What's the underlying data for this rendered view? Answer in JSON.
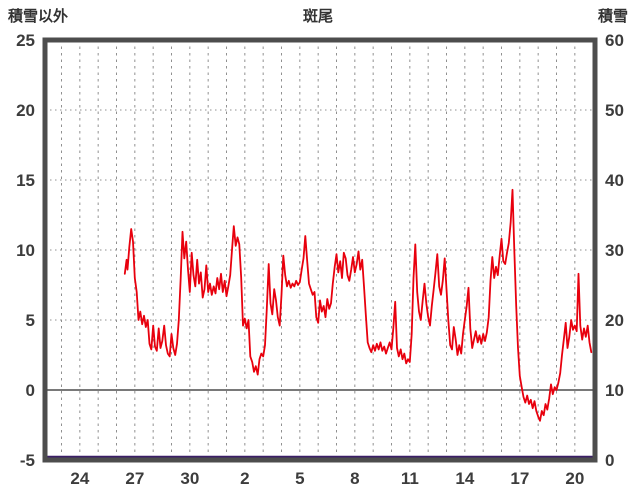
{
  "header": {
    "left_axis_title": "積雪以外",
    "title": "斑尾",
    "right_axis_title": "積雪"
  },
  "colors": {
    "frame": "#4d4d4d",
    "grid": "#909090",
    "zero_line": "#4d4d4d",
    "text": "#3c3c3c",
    "temperature_line": "#e8000d",
    "snow_line": "#3a1f66"
  },
  "chart_data": {
    "type": "line",
    "title": "斑尾",
    "left_axis": {
      "label": "積雪以外",
      "min": -5,
      "max": 25,
      "ticks": [
        25,
        20,
        15,
        10,
        5,
        0,
        -5
      ]
    },
    "right_axis": {
      "label": "積雪",
      "min": 0,
      "max": 60,
      "ticks": [
        60,
        50,
        40,
        30,
        20,
        10,
        0
      ]
    },
    "x_axis": {
      "tick_labels": [
        "24",
        "27",
        "30",
        "2",
        "5",
        "8",
        "11",
        "14",
        "17",
        "20"
      ],
      "tick_positions": [
        0,
        3,
        6,
        9,
        12,
        15,
        18,
        21,
        24,
        27
      ],
      "min": -1.9,
      "max": 28.1,
      "day_grid_step": 1
    },
    "grid": true,
    "legend_position": "none",
    "zero_line_value": 0,
    "series": [
      {
        "name": "積雪以外",
        "axis": "left",
        "color": "#e8000d",
        "width": 1.8,
        "points": [
          [
            2.45,
            8.3
          ],
          [
            2.55,
            9.3
          ],
          [
            2.6,
            8.6
          ],
          [
            2.7,
            10.2
          ],
          [
            2.8,
            11.5
          ],
          [
            2.9,
            10.6
          ],
          [
            3.0,
            8.0
          ],
          [
            3.1,
            7.0
          ],
          [
            3.2,
            5.0
          ],
          [
            3.3,
            5.6
          ],
          [
            3.4,
            4.7
          ],
          [
            3.5,
            5.3
          ],
          [
            3.6,
            4.5
          ],
          [
            3.7,
            5.0
          ],
          [
            3.8,
            3.3
          ],
          [
            3.9,
            2.9
          ],
          [
            4.0,
            4.6
          ],
          [
            4.1,
            3.1
          ],
          [
            4.2,
            2.8
          ],
          [
            4.3,
            4.4
          ],
          [
            4.4,
            3.0
          ],
          [
            4.5,
            3.5
          ],
          [
            4.6,
            4.6
          ],
          [
            4.7,
            3.2
          ],
          [
            4.8,
            2.6
          ],
          [
            4.9,
            2.4
          ],
          [
            5.0,
            4.0
          ],
          [
            5.1,
            3.0
          ],
          [
            5.2,
            2.5
          ],
          [
            5.3,
            3.3
          ],
          [
            5.4,
            5.0
          ],
          [
            5.5,
            8.0
          ],
          [
            5.6,
            11.3
          ],
          [
            5.7,
            9.4
          ],
          [
            5.8,
            10.6
          ],
          [
            5.9,
            8.6
          ],
          [
            6.0,
            7.0
          ],
          [
            6.1,
            9.8
          ],
          [
            6.2,
            8.2
          ],
          [
            6.3,
            7.4
          ],
          [
            6.4,
            9.3
          ],
          [
            6.5,
            7.6
          ],
          [
            6.6,
            8.4
          ],
          [
            6.7,
            6.6
          ],
          [
            6.8,
            7.2
          ],
          [
            6.9,
            8.9
          ],
          [
            7.0,
            7.0
          ],
          [
            7.1,
            7.6
          ],
          [
            7.2,
            6.8
          ],
          [
            7.3,
            7.4
          ],
          [
            7.4,
            6.9
          ],
          [
            7.5,
            8.0
          ],
          [
            7.6,
            7.2
          ],
          [
            7.7,
            8.3
          ],
          [
            7.8,
            7.0
          ],
          [
            7.9,
            7.8
          ],
          [
            8.0,
            6.7
          ],
          [
            8.1,
            7.4
          ],
          [
            8.2,
            8.2
          ],
          [
            8.3,
            10.0
          ],
          [
            8.4,
            11.7
          ],
          [
            8.5,
            10.3
          ],
          [
            8.6,
            10.9
          ],
          [
            8.7,
            10.4
          ],
          [
            8.8,
            8.0
          ],
          [
            8.9,
            4.6
          ],
          [
            9.0,
            5.1
          ],
          [
            9.1,
            4.4
          ],
          [
            9.2,
            5.0
          ],
          [
            9.3,
            2.4
          ],
          [
            9.4,
            2.0
          ],
          [
            9.5,
            1.3
          ],
          [
            9.6,
            1.7
          ],
          [
            9.7,
            1.1
          ],
          [
            9.8,
            2.2
          ],
          [
            9.9,
            2.6
          ],
          [
            10.0,
            2.4
          ],
          [
            10.1,
            3.2
          ],
          [
            10.2,
            5.8
          ],
          [
            10.3,
            9.0
          ],
          [
            10.4,
            6.2
          ],
          [
            10.5,
            5.4
          ],
          [
            10.6,
            7.2
          ],
          [
            10.7,
            6.4
          ],
          [
            10.8,
            5.2
          ],
          [
            10.9,
            4.6
          ],
          [
            11.0,
            6.8
          ],
          [
            11.1,
            9.6
          ],
          [
            11.2,
            8.2
          ],
          [
            11.3,
            7.4
          ],
          [
            11.4,
            7.8
          ],
          [
            11.5,
            7.3
          ],
          [
            11.6,
            7.6
          ],
          [
            11.7,
            7.4
          ],
          [
            11.8,
            7.8
          ],
          [
            11.9,
            7.5
          ],
          [
            12.0,
            7.7
          ],
          [
            12.1,
            8.6
          ],
          [
            12.2,
            9.4
          ],
          [
            12.3,
            11.0
          ],
          [
            12.4,
            9.2
          ],
          [
            12.5,
            7.6
          ],
          [
            12.6,
            7.2
          ],
          [
            12.7,
            6.8
          ],
          [
            12.8,
            7.0
          ],
          [
            12.9,
            5.2
          ],
          [
            13.0,
            4.8
          ],
          [
            13.1,
            6.4
          ],
          [
            13.2,
            5.6
          ],
          [
            13.3,
            6.0
          ],
          [
            13.4,
            5.2
          ],
          [
            13.5,
            6.5
          ],
          [
            13.6,
            5.8
          ],
          [
            13.7,
            6.2
          ],
          [
            13.8,
            7.6
          ],
          [
            13.9,
            8.8
          ],
          [
            14.0,
            9.7
          ],
          [
            14.1,
            8.4
          ],
          [
            14.2,
            9.2
          ],
          [
            14.3,
            8.0
          ],
          [
            14.4,
            9.8
          ],
          [
            14.5,
            9.4
          ],
          [
            14.6,
            8.2
          ],
          [
            14.7,
            7.8
          ],
          [
            14.8,
            8.6
          ],
          [
            14.9,
            9.5
          ],
          [
            15.0,
            8.4
          ],
          [
            15.1,
            9.0
          ],
          [
            15.2,
            9.9
          ],
          [
            15.3,
            8.6
          ],
          [
            15.4,
            9.3
          ],
          [
            15.5,
            7.4
          ],
          [
            15.6,
            5.4
          ],
          [
            15.7,
            3.4
          ],
          [
            15.8,
            3.0
          ],
          [
            15.9,
            2.7
          ],
          [
            16.0,
            3.2
          ],
          [
            16.1,
            2.8
          ],
          [
            16.2,
            3.3
          ],
          [
            16.3,
            2.9
          ],
          [
            16.4,
            3.4
          ],
          [
            16.5,
            2.8
          ],
          [
            16.6,
            3.1
          ],
          [
            16.7,
            2.6
          ],
          [
            16.8,
            3.0
          ],
          [
            16.9,
            3.4
          ],
          [
            17.0,
            2.9
          ],
          [
            17.1,
            4.4
          ],
          [
            17.2,
            6.3
          ],
          [
            17.3,
            3.0
          ],
          [
            17.4,
            2.4
          ],
          [
            17.5,
            2.9
          ],
          [
            17.6,
            2.2
          ],
          [
            17.7,
            2.6
          ],
          [
            17.8,
            1.9
          ],
          [
            17.9,
            2.2
          ],
          [
            18.0,
            2.0
          ],
          [
            18.1,
            4.0
          ],
          [
            18.2,
            8.0
          ],
          [
            18.3,
            10.4
          ],
          [
            18.4,
            7.0
          ],
          [
            18.5,
            5.6
          ],
          [
            18.6,
            5.0
          ],
          [
            18.7,
            6.4
          ],
          [
            18.8,
            7.6
          ],
          [
            18.9,
            6.2
          ],
          [
            19.0,
            5.2
          ],
          [
            19.1,
            4.6
          ],
          [
            19.2,
            6.0
          ],
          [
            19.3,
            7.2
          ],
          [
            19.4,
            8.4
          ],
          [
            19.5,
            9.7
          ],
          [
            19.6,
            7.4
          ],
          [
            19.7,
            6.8
          ],
          [
            19.8,
            7.8
          ],
          [
            19.9,
            9.4
          ],
          [
            20.0,
            7.2
          ],
          [
            20.1,
            5.0
          ],
          [
            20.2,
            3.2
          ],
          [
            20.3,
            2.9
          ],
          [
            20.4,
            4.5
          ],
          [
            20.5,
            3.6
          ],
          [
            20.6,
            2.5
          ],
          [
            20.7,
            3.2
          ],
          [
            20.8,
            2.6
          ],
          [
            20.9,
            4.0
          ],
          [
            21.0,
            5.0
          ],
          [
            21.1,
            6.0
          ],
          [
            21.2,
            7.3
          ],
          [
            21.3,
            4.4
          ],
          [
            21.4,
            3.0
          ],
          [
            21.5,
            3.6
          ],
          [
            21.6,
            4.2
          ],
          [
            21.7,
            3.4
          ],
          [
            21.8,
            3.9
          ],
          [
            21.9,
            3.3
          ],
          [
            22.0,
            4.0
          ],
          [
            22.1,
            3.5
          ],
          [
            22.2,
            4.1
          ],
          [
            22.3,
            5.2
          ],
          [
            22.4,
            7.8
          ],
          [
            22.5,
            9.5
          ],
          [
            22.6,
            8.0
          ],
          [
            22.7,
            8.8
          ],
          [
            22.8,
            8.2
          ],
          [
            22.9,
            9.6
          ],
          [
            23.0,
            10.8
          ],
          [
            23.1,
            9.2
          ],
          [
            23.2,
            9.0
          ],
          [
            23.3,
            9.8
          ],
          [
            23.4,
            10.5
          ],
          [
            23.5,
            12.0
          ],
          [
            23.6,
            14.3
          ],
          [
            23.7,
            10.0
          ],
          [
            23.8,
            6.0
          ],
          [
            23.9,
            3.0
          ],
          [
            24.0,
            1.0
          ],
          [
            24.1,
            0.2
          ],
          [
            24.2,
            -0.5
          ],
          [
            24.3,
            -0.9
          ],
          [
            24.4,
            -0.4
          ],
          [
            24.5,
            -1.0
          ],
          [
            24.6,
            -0.7
          ],
          [
            24.7,
            -1.3
          ],
          [
            24.8,
            -0.8
          ],
          [
            24.9,
            -1.5
          ],
          [
            25.0,
            -1.9
          ],
          [
            25.1,
            -2.2
          ],
          [
            25.2,
            -1.5
          ],
          [
            25.3,
            -1.8
          ],
          [
            25.4,
            -1.0
          ],
          [
            25.5,
            -1.4
          ],
          [
            25.6,
            -0.6
          ],
          [
            25.7,
            0.4
          ],
          [
            25.8,
            -0.3
          ],
          [
            25.9,
            0.2
          ],
          [
            26.0,
            0.0
          ],
          [
            26.1,
            0.5
          ],
          [
            26.2,
            1.2
          ],
          [
            26.3,
            2.5
          ],
          [
            26.4,
            3.6
          ],
          [
            26.5,
            4.8
          ],
          [
            26.6,
            3.0
          ],
          [
            26.7,
            3.8
          ],
          [
            26.8,
            5.0
          ],
          [
            26.9,
            4.3
          ],
          [
            27.0,
            4.6
          ],
          [
            27.1,
            4.2
          ],
          [
            27.2,
            8.3
          ],
          [
            27.3,
            4.6
          ],
          [
            27.4,
            3.6
          ],
          [
            27.5,
            4.4
          ],
          [
            27.6,
            3.8
          ],
          [
            27.7,
            4.6
          ],
          [
            27.8,
            3.4
          ],
          [
            27.9,
            2.7
          ]
        ]
      },
      {
        "name": "積雪",
        "axis": "right",
        "color": "#3a1f66",
        "width": 2.5,
        "points": [
          [
            -1.9,
            0
          ],
          [
            28.1,
            0
          ]
        ]
      }
    ]
  }
}
